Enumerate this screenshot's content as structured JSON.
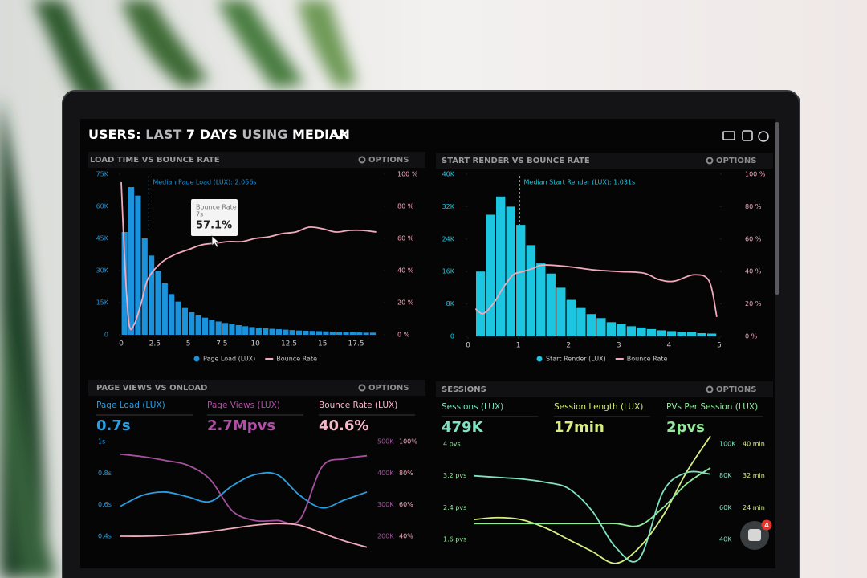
{
  "header": {
    "title": [
      "USERS:",
      "LAST",
      "7 DAYS",
      "USING",
      "MEDIAN"
    ]
  },
  "panels": [
    {
      "title": "LOAD TIME VS BOUNCE RATE",
      "options": "OPTIONS",
      "chart": {
        "type": "histogram",
        "bar_name": "Page Load (LUX)",
        "color": "#1b93dc",
        "bins": [
          0,
          0.5,
          1,
          1.5,
          2,
          2.5,
          3,
          3.5,
          4,
          4.5,
          5,
          5.5,
          6,
          6.5,
          7,
          7.5,
          8,
          8.5,
          9,
          9.5,
          10,
          10.5,
          11,
          11.5,
          12,
          12.5,
          13,
          13.5,
          14,
          14.5,
          15,
          15.5,
          16,
          16.5,
          17,
          17.5,
          18,
          18.5,
          19
        ],
        "counts": [
          48000,
          69000,
          65000,
          45000,
          37000,
          30000,
          24000,
          19000,
          15500,
          12500,
          10500,
          9000,
          8000,
          7000,
          6200,
          5500,
          5000,
          4500,
          4000,
          3600,
          3300,
          3000,
          2800,
          2600,
          2400,
          2200,
          2000,
          1900,
          1800,
          1700,
          1600,
          1500,
          1400,
          1300,
          1200,
          1100,
          1000,
          1000
        ],
        "xlim": [
          0,
          19.5
        ],
        "xticks": [
          0,
          2.5,
          5,
          7.5,
          10,
          12.5,
          15,
          17.5
        ],
        "ylim": [
          0,
          75000
        ],
        "yticks": [
          0,
          {
            "value": 15000,
            "label": "15K"
          },
          {
            "value": 30000,
            "label": "30K"
          },
          {
            "value": 45000,
            "label": "45K"
          },
          {
            "value": 60000,
            "label": "60K"
          },
          {
            "value": 75000,
            "label": "75K"
          }
        ],
        "y2lim": [
          0,
          100
        ],
        "y2ticks": [
          {
            "value": 0,
            "label": "0 %"
          },
          {
            "value": 20,
            "label": "20 %"
          },
          {
            "value": 40,
            "label": "40 %"
          },
          {
            "value": 60,
            "label": "60 %"
          },
          {
            "value": 80,
            "label": "80 %"
          },
          {
            "value": 100,
            "label": "100 %"
          }
        ],
        "line": {
          "name": "Bounce Rate",
          "color": "#f2a9bb",
          "axis": "y2",
          "x": [
            0,
            0.3,
            0.6,
            1,
            1.5,
            2,
            3,
            4,
            5,
            6,
            7,
            8,
            9,
            10,
            11,
            12,
            13,
            14,
            15,
            16,
            17,
            18,
            19
          ],
          "values": [
            95,
            40,
            6,
            7,
            20,
            35,
            45,
            50,
            53,
            56,
            57,
            58,
            58,
            60,
            61,
            63,
            64,
            67,
            66,
            64,
            65,
            65,
            64
          ]
        },
        "median": {
          "value": 2.056,
          "label": "Median Page Load (LUX): 2.056s"
        },
        "tooltip": {
          "title": "Bounce Rate",
          "x_label": "7s",
          "value_label": "57.1%"
        }
      }
    },
    {
      "title": "START RENDER VS BOUNCE RATE",
      "options": "OPTIONS",
      "chart": {
        "type": "histogram",
        "bar_name": "Start Render (LUX)",
        "color": "#1cc6e0",
        "bins": [
          0.15,
          0.35,
          0.55,
          0.75,
          0.95,
          1.15,
          1.35,
          1.55,
          1.75,
          1.95,
          2.15,
          2.35,
          2.55,
          2.75,
          2.95,
          3.15,
          3.35,
          3.55,
          3.75,
          3.95,
          4.15,
          4.35,
          4.55,
          4.75,
          4.95
        ],
        "counts": [
          16000,
          30000,
          34500,
          32000,
          27500,
          22500,
          18000,
          15500,
          12000,
          9000,
          7000,
          5500,
          4500,
          3500,
          3000,
          2500,
          2200,
          1800,
          1500,
          1300,
          1100,
          1000,
          800,
          700
        ],
        "xlim": [
          0,
          5
        ],
        "xticks": [
          0,
          1,
          2,
          3,
          4,
          5
        ],
        "ylim": [
          0,
          40000
        ],
        "yticks": [
          0,
          {
            "value": 8000,
            "label": "8K"
          },
          {
            "value": 16000,
            "label": "16K"
          },
          {
            "value": 24000,
            "label": "24K"
          },
          {
            "value": 32000,
            "label": "32K"
          },
          {
            "value": 40000,
            "label": "40K"
          }
        ],
        "y2lim": [
          0,
          100
        ],
        "y2ticks": [
          {
            "value": 0,
            "label": "0 %"
          },
          {
            "value": 20,
            "label": "20 %"
          },
          {
            "value": 40,
            "label": "40 %"
          },
          {
            "value": 60,
            "label": "60 %"
          },
          {
            "value": 80,
            "label": "80 %"
          },
          {
            "value": 100,
            "label": "100 %"
          }
        ],
        "line": {
          "name": "Bounce Rate",
          "color": "#f2a9bb",
          "axis": "y2",
          "x": [
            0.15,
            0.3,
            0.5,
            0.7,
            0.9,
            1.1,
            1.3,
            1.5,
            2,
            2.5,
            3,
            3.5,
            3.8,
            4.1,
            4.5,
            4.8,
            4.95
          ],
          "values": [
            17,
            14,
            20,
            30,
            38,
            40,
            42,
            44,
            43,
            41,
            40,
            39,
            35,
            34,
            38,
            34,
            12
          ]
        },
        "median": {
          "value": 1.031,
          "label": "Median Start Render (LUX): 1.031s"
        }
      }
    },
    {
      "title": "PAGE VIEWS VS ONLOAD",
      "options": "OPTIONS",
      "metrics": [
        {
          "label": "Page Load (LUX)",
          "value": "0.7s",
          "color": "#2a9ee0"
        },
        {
          "label": "Page Views (LUX)",
          "value": "2.7Mpvs",
          "color": "#b24ea6"
        },
        {
          "label": "Bounce Rate (LUX)",
          "value": "40.6%",
          "color": "#f7b8ca"
        }
      ],
      "chart": {
        "type": "multiline",
        "ylim": [
          0.4,
          1
        ],
        "yticks": [
          {
            "value": 0.4,
            "label": "0.4s"
          },
          {
            "value": 0.6,
            "label": "0.6s"
          },
          {
            "value": 0.8,
            "label": "0.8s"
          },
          {
            "value": 1,
            "label": "1s"
          }
        ],
        "y2lim": [
          200000,
          500000
        ],
        "y2ticks": [
          {
            "value": 200000,
            "label": "200K"
          },
          {
            "value": 300000,
            "label": "300K"
          },
          {
            "value": 400000,
            "label": "400K"
          },
          {
            "value": 500000,
            "label": "500K"
          }
        ],
        "y3lim": [
          40,
          100
        ],
        "y3ticks": [
          {
            "value": 40,
            "label": "40%"
          },
          {
            "value": 60,
            "label": "60%"
          },
          {
            "value": 80,
            "label": "80%"
          },
          {
            "value": 100,
            "label": "100%"
          }
        ],
        "series": [
          {
            "color": "#2a9ee0",
            "axis": "y",
            "values": [
              0.59,
              0.66,
              0.68,
              0.65,
              0.62,
              0.72,
              0.79,
              0.79,
              0.66,
              0.58,
              0.63,
              0.68
            ]
          },
          {
            "color": "#a4509c",
            "axis": "y2",
            "values": [
              460000,
              452000,
              440000,
              425000,
              380000,
              280000,
              250000,
              250000,
              252000,
              420000,
              445000,
              455000
            ]
          },
          {
            "color": "#f2a9bb",
            "axis": "y3",
            "values": [
              40,
              40,
              40.5,
              41.5,
              43,
              45,
              47,
              48,
              47,
              42,
              37,
              33
            ]
          }
        ]
      }
    },
    {
      "title": "SESSIONS",
      "options": "OPTIONS",
      "metrics": [
        {
          "label": "Sessions (LUX)",
          "value": "479K",
          "color": "#7fe3c0"
        },
        {
          "label": "Session Length (LUX)",
          "value": "17min",
          "color": "#d6ee82"
        },
        {
          "label": "PVs Per Session (LUX)",
          "value": "2pvs",
          "color": "#93e99c"
        }
      ],
      "chart": {
        "type": "multiline",
        "ylim": [
          1.6,
          4
        ],
        "yticks": [
          {
            "value": 1.6,
            "label": "1.6 pvs"
          },
          {
            "value": 2.4,
            "label": "2.4 pvs"
          },
          {
            "value": 3.2,
            "label": "3.2 pvs"
          },
          {
            "value": 4,
            "label": "4 pvs"
          }
        ],
        "y2lim": [
          40000,
          100000
        ],
        "y2ticks": [
          {
            "value": 40000,
            "label": "40K"
          },
          {
            "value": 60000,
            "label": "60K"
          },
          {
            "value": 80000,
            "label": "80K"
          },
          {
            "value": 100000,
            "label": "100K"
          }
        ],
        "y3lim": [
          16,
          40
        ],
        "y3ticks": [
          {
            "value": 24,
            "label": "24 min"
          },
          {
            "value": 32,
            "label": "32 min"
          },
          {
            "value": 40,
            "label": "40 min"
          }
        ],
        "series": [
          {
            "color": "#d6ee82",
            "axis": "y3",
            "values": [
              21,
              21.5,
              21,
              19,
              16,
              13,
              10,
              14,
              22,
              33,
              42
            ]
          },
          {
            "color": "#93e99c",
            "axis": "y",
            "values": [
              2,
              2,
              2,
              2,
              2,
              2,
              2,
              1.95,
              2.4,
              3,
              3.4
            ]
          },
          {
            "color": "#7fe3c0",
            "axis": "y2",
            "values": [
              80000,
              79000,
              78000,
              76000,
              72000,
              58000,
              35000,
              28000,
              70000,
              82000,
              81000
            ]
          }
        ]
      }
    }
  ],
  "chat": {
    "badge": 4
  }
}
